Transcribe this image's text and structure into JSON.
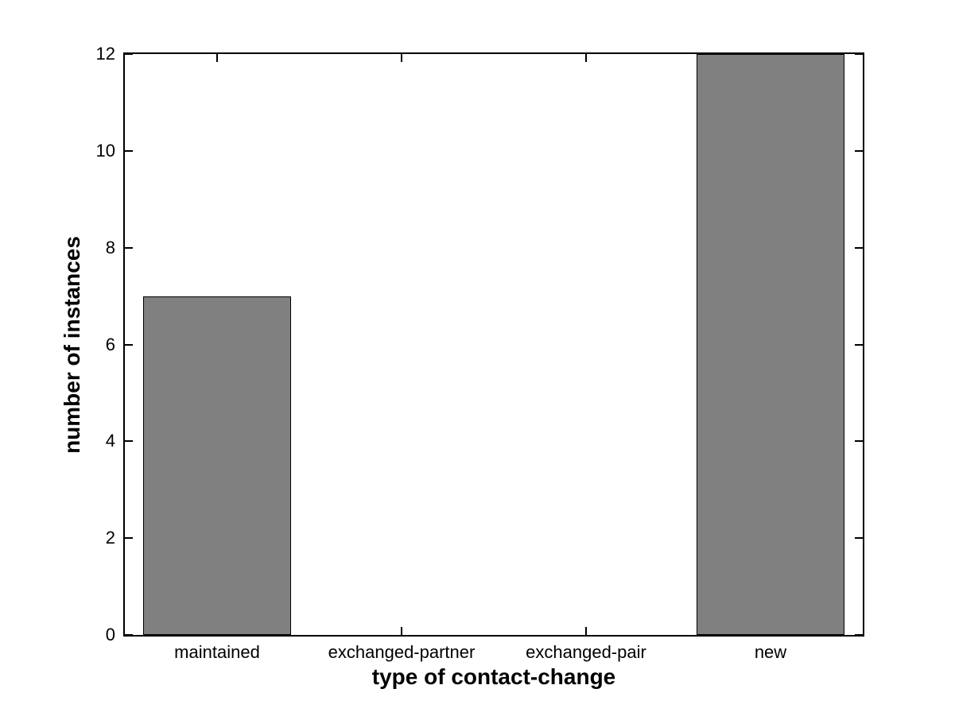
{
  "figure": {
    "background_color": "#ffffff",
    "axis_color": "#000000",
    "text_color": "#000000"
  },
  "chart_data": {
    "type": "bar",
    "categories": [
      "maintained",
      "exchanged-partner",
      "exchanged-pair",
      "new"
    ],
    "values": [
      7,
      0,
      0,
      12
    ],
    "title": "",
    "xlabel": "type of contact-change",
    "ylabel": "number of instances",
    "ylim": [
      0,
      12
    ],
    "yticks": [
      0,
      2,
      4,
      6,
      8,
      10,
      12
    ],
    "ytick_labels": [
      "0",
      "2",
      "4",
      "6",
      "8",
      "10",
      "12"
    ],
    "bar_color": "#808080",
    "bar_edge_color": "#000000",
    "bar_width_fraction": 0.8,
    "grid": false,
    "legend": null
  }
}
